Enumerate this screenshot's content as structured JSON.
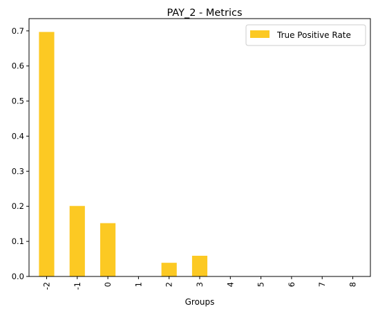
{
  "chart_data": {
    "type": "bar",
    "title": "PAY_2 - Metrics",
    "xlabel": "Groups",
    "ylabel": "",
    "categories": [
      "-2",
      "-1",
      "0",
      "1",
      "2",
      "3",
      "4",
      "5",
      "6",
      "7",
      "8"
    ],
    "series": [
      {
        "name": "True Positive Rate",
        "values": [
          0.697,
          0.201,
          0.152,
          0.0,
          0.039,
          0.059,
          0.0,
          0.0,
          0.0,
          0.0,
          0.0
        ],
        "color": "#fcc923"
      }
    ],
    "ylim": [
      0,
      0.735
    ],
    "yticks": [
      "0.0",
      "0.1",
      "0.2",
      "0.3",
      "0.4",
      "0.5",
      "0.6",
      "0.7"
    ],
    "ytick_values": [
      0,
      0.1,
      0.2,
      0.3,
      0.4,
      0.5,
      0.6,
      0.7
    ],
    "grid": false,
    "legend": "top-right"
  }
}
